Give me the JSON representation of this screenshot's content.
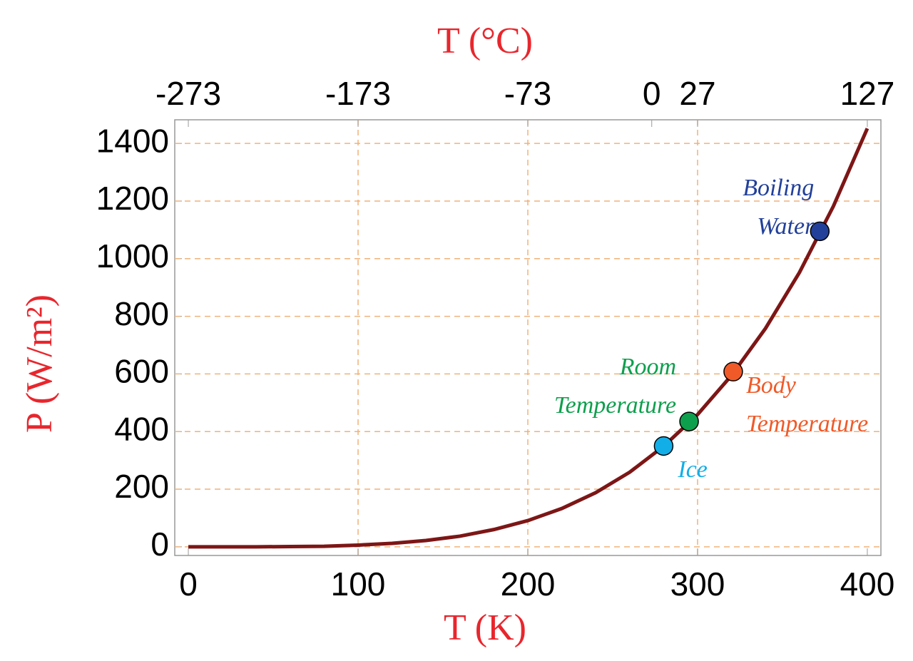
{
  "chart_data": {
    "type": "line",
    "xlabel": "T (K)",
    "x2label": "T (°C)",
    "ylabel": "P (W/m²)",
    "xlim": [
      -8,
      408
    ],
    "xticks": [
      0,
      100,
      200,
      300,
      400
    ],
    "x2lim": [
      -281,
      135
    ],
    "x2ticks": [
      -273,
      -173,
      -73,
      0,
      27,
      127
    ],
    "ylim": [
      -30,
      1482
    ],
    "yticks": [
      0,
      200,
      400,
      600,
      800,
      1000,
      1200,
      1400
    ],
    "xgrid": [
      100,
      200,
      300
    ],
    "grid": true,
    "grid_color": "#f0b27a",
    "series": [
      {
        "color": "#7d1616",
        "x": [
          0,
          20,
          40,
          60,
          80,
          100,
          120,
          140,
          160,
          180,
          200,
          220,
          240,
          260,
          280,
          300,
          320,
          340,
          360,
          380,
          400
        ],
        "values": [
          0,
          0,
          0,
          1,
          2,
          6,
          12,
          22,
          37,
          60,
          91,
          133,
          188,
          259,
          349,
          459,
          595,
          758,
          952,
          1182,
          1452
        ]
      }
    ],
    "points": [
      {
        "label": [
          "Boiling",
          "Water"
        ],
        "x": 372,
        "y": 1095,
        "color": "#22409a"
      },
      {
        "label": [
          "Body",
          "Temperature"
        ],
        "x": 321,
        "y": 608,
        "color": "#f05a28"
      },
      {
        "label": [
          "Room",
          "Temperature"
        ],
        "x": 295,
        "y": 435,
        "color": "#0e9f4d"
      },
      {
        "label": [
          "Ice"
        ],
        "x": 280,
        "y": 350,
        "color": "#12aee8"
      }
    ]
  }
}
